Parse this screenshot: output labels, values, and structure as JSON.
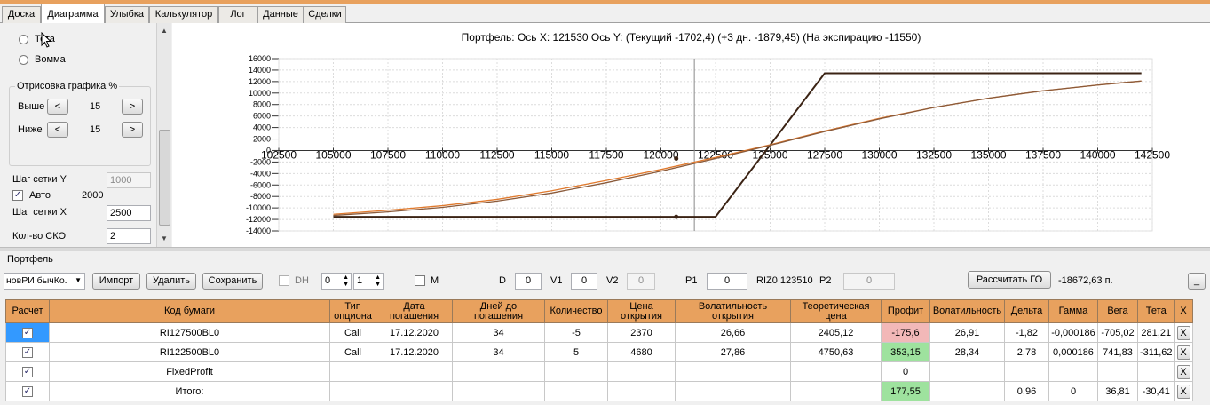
{
  "tabs": [
    "Доска",
    "Диаграмма",
    "Улыбка",
    "Калькулятор",
    "Лог",
    "Данные",
    "Сделки"
  ],
  "active_tab": "Диаграмма",
  "left_panel": {
    "radio_theta": "Тета",
    "radio_vomma": "Вомма",
    "plot_group": {
      "title": "Отрисовка графика %",
      "above_label": "Выше",
      "above_value": "15",
      "below_label": "Ниже",
      "below_value": "15",
      "dec": "<",
      "inc": ">"
    },
    "grid_y_label": "Шаг сетки Y",
    "grid_y_value": "1000",
    "auto_label": "Авто",
    "auto_value": "2000",
    "auto_checked": "✓",
    "grid_x_label": "Шаг сетки X",
    "grid_x_value": "2500",
    "sko_label": "Кол-во СКО",
    "sko_value": "2"
  },
  "chart_data": {
    "type": "line",
    "title": "Портфель: Ось X: 121530 Ось Y:  (Текущий -1702,4)  (+3 дн. -1879,45)  (На экспирацию -11550)",
    "x_ticks": [
      "102500",
      "105000",
      "107500",
      "110000",
      "112500",
      "115000",
      "117500",
      "120000",
      "122500",
      "125000",
      "127500",
      "130000",
      "132500",
      "135000",
      "137500",
      "140000",
      "142500"
    ],
    "y_ticks": [
      "16000",
      "14000",
      "12000",
      "10000",
      "8000",
      "6000",
      "4000",
      "2000",
      "0",
      "-2000",
      "-4000",
      "-6000",
      "-8000",
      "-10000",
      "-12000",
      "-14000"
    ],
    "xlim": [
      102500,
      142500
    ],
    "ylim": [
      -14000,
      16000
    ],
    "cursor_x": 121530,
    "series": [
      {
        "x": [
          105000,
          122500,
          127500,
          142000
        ],
        "y": [
          -11550,
          -11550,
          13450,
          13450
        ],
        "color": "#3b2314"
      },
      {
        "x": [
          105000,
          107500,
          110000,
          112500,
          115000,
          117500,
          120000,
          122500,
          125000,
          127500,
          130000,
          132500,
          135000,
          137500,
          140000,
          142000
        ],
        "y": [
          -11100,
          -10400,
          -9600,
          -8500,
          -7000,
          -5200,
          -3300,
          -1200,
          1000,
          3400,
          5600,
          7500,
          9100,
          10400,
          11400,
          12100
        ],
        "color": "#e07a2e"
      },
      {
        "x": [
          105000,
          107500,
          110000,
          112500,
          115000,
          117500,
          120000,
          122500,
          125000,
          127500,
          130000,
          132500,
          135000,
          137500,
          140000,
          142000
        ],
        "y": [
          -11300,
          -10700,
          -9900,
          -8800,
          -7400,
          -5600,
          -3600,
          -1400,
          900,
          3300,
          5500,
          7500,
          9100,
          10400,
          11400,
          12100
        ],
        "color": "#8a5a3a"
      }
    ],
    "markers": [
      {
        "x": 120700,
        "y": -1400
      },
      {
        "x": 120700,
        "y": -11550
      }
    ],
    "grid": true
  },
  "portfolio": {
    "title": "Портфель",
    "combo_value": "новРИ бычКо.",
    "import": "Импорт",
    "delete": "Удалить",
    "save": "Сохранить",
    "dh_label": "DH",
    "dh_val1": "0",
    "dh_val2": "1",
    "m_label": "M",
    "d_label": "D",
    "d_value": "0",
    "v1_label": "V1",
    "v1_value": "0",
    "v2_label": "V2",
    "v2_value": "0",
    "p1_label": "P1",
    "p1_value": "0",
    "riz_label": "RIZ0 123510",
    "p2_label": "P2",
    "p2_value": "0",
    "calc_go": "Рассчитать ГО",
    "go_value": "-18672,63 п.",
    "minimize": "_"
  },
  "grid": {
    "headers": [
      "Расчет",
      "Код бумаги",
      "Тип опциона",
      "Дата погашения",
      "Дней до погашения",
      "Количество",
      "Цена открытия",
      "Волатильность открытия",
      "Теоретическая цена",
      "Профит",
      "Волатильность",
      "Дельта",
      "Гамма",
      "Вега",
      "Тета",
      "X"
    ],
    "rows": [
      [
        "✓",
        "RI127500BL0",
        "Call",
        "17.12.2020",
        "34",
        "-5",
        "2370",
        "26,66",
        "2405,12",
        "-175,6",
        "26,91",
        "-1,82",
        "-0,000186",
        "-705,02",
        "281,21",
        "X"
      ],
      [
        "✓",
        "RI122500BL0",
        "Call",
        "17.12.2020",
        "34",
        "5",
        "4680",
        "27,86",
        "4750,63",
        "353,15",
        "28,34",
        "2,78",
        "0,000186",
        "741,83",
        "-311,62",
        "X"
      ],
      [
        "✓",
        "FixedProfit",
        "",
        "",
        "",
        "",
        "",
        "",
        "",
        "0",
        "",
        "",
        "",
        "",
        "",
        "X"
      ],
      [
        "✓",
        "Итого:",
        "",
        "",
        "",
        "",
        "",
        "",
        "",
        "177,55",
        "",
        "0,96",
        "0",
        "36,81",
        "-30,41",
        "X"
      ]
    ]
  }
}
